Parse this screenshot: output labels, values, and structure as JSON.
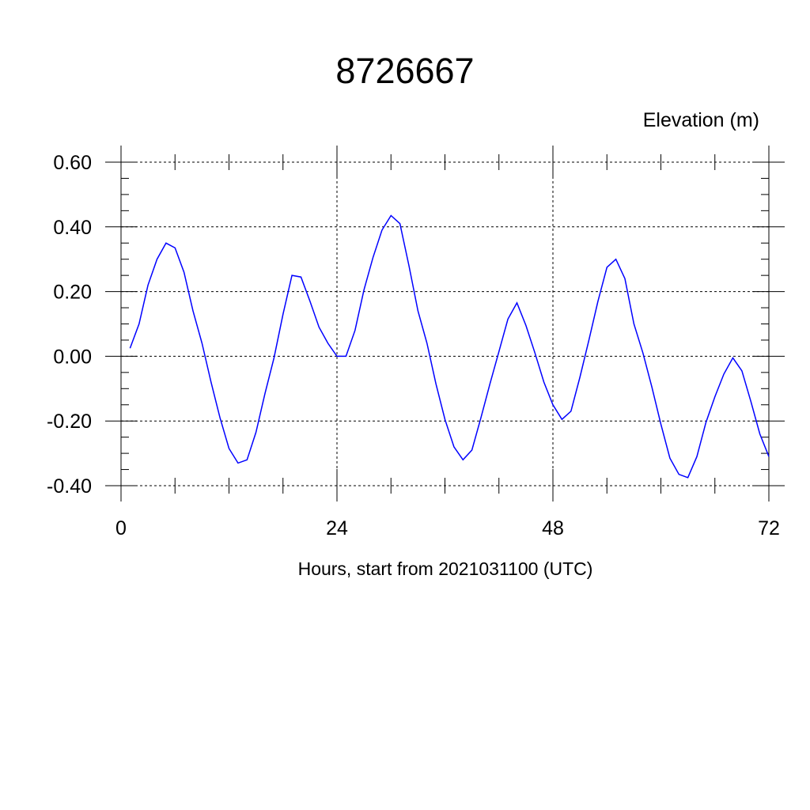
{
  "chart_data": {
    "type": "line",
    "title": "8726667",
    "ylabel": "Elevation (m)",
    "xlabel": "Hours, start from 2021031100 (UTC)",
    "xlim": [
      0,
      72
    ],
    "ylim": [
      -0.4,
      0.6
    ],
    "xticks": [
      0,
      24,
      48,
      72
    ],
    "xtick_labels": [
      "0",
      "24",
      "48",
      "72"
    ],
    "yticks": [
      -0.4,
      -0.2,
      0.0,
      0.2,
      0.4,
      0.6
    ],
    "ytick_labels": [
      "-0.40",
      "-0.20",
      "0.00",
      "0.20",
      "0.40",
      "0.60"
    ],
    "grid": true,
    "line_color": "#0000ff",
    "series": [
      {
        "x": [
          1,
          2,
          3,
          4,
          5,
          6,
          7,
          8,
          9,
          10,
          11,
          12,
          13,
          14,
          15,
          16,
          17,
          18,
          19,
          20,
          21,
          22,
          23,
          24,
          25,
          26,
          27,
          28,
          29,
          30,
          31,
          32,
          33,
          34,
          35,
          36,
          37,
          38,
          39,
          40,
          41,
          42,
          43,
          44,
          45,
          46,
          47,
          48,
          49,
          50,
          51,
          52,
          53,
          54,
          55,
          56,
          57,
          58,
          59,
          60,
          61,
          62,
          63,
          64,
          65,
          66,
          67,
          68,
          69,
          70,
          71,
          72
        ],
        "y": [
          0.025,
          0.1,
          0.22,
          0.3,
          0.35,
          0.335,
          0.26,
          0.14,
          0.04,
          -0.08,
          -0.19,
          -0.285,
          -0.33,
          -0.32,
          -0.235,
          -0.115,
          -0.005,
          0.13,
          0.25,
          0.245,
          0.17,
          0.09,
          0.04,
          0.0,
          0.0,
          0.08,
          0.205,
          0.305,
          0.39,
          0.435,
          0.41,
          0.28,
          0.14,
          0.04,
          -0.085,
          -0.195,
          -0.28,
          -0.32,
          -0.29,
          -0.19,
          -0.085,
          0.015,
          0.115,
          0.165,
          0.095,
          0.01,
          -0.08,
          -0.15,
          -0.195,
          -0.17,
          -0.065,
          0.05,
          0.17,
          0.275,
          0.3,
          0.24,
          0.1,
          0.01,
          -0.095,
          -0.21,
          -0.315,
          -0.365,
          -0.375,
          -0.31,
          -0.205,
          -0.125,
          -0.055,
          -0.005,
          -0.045,
          -0.14,
          -0.24,
          -0.31
        ]
      }
    ]
  }
}
